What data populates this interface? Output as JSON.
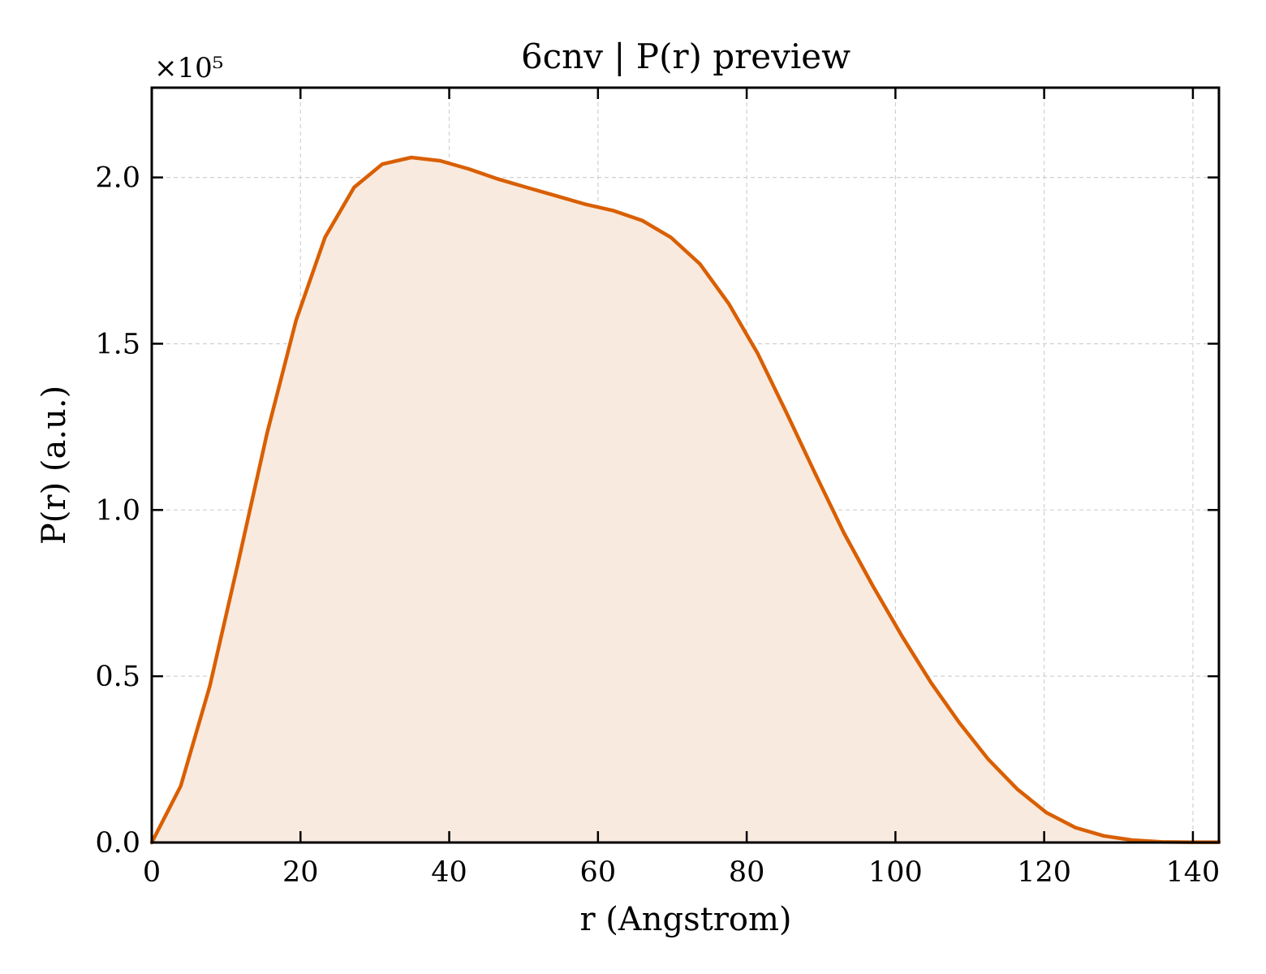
{
  "chart_data": {
    "type": "area",
    "title": "6cnv | P(r) preview",
    "xlabel": "r (Angstrom)",
    "ylabel": "P(r) (a.u.)",
    "y_scale_label": "×10⁵",
    "y_scale_factor": 100000,
    "xlim": [
      0,
      143.5
    ],
    "ylim": [
      0,
      2.27
    ],
    "xticks": [
      0,
      20,
      40,
      60,
      80,
      100,
      120,
      140
    ],
    "yticks": [
      0.0,
      0.5,
      1.0,
      1.5,
      2.0
    ],
    "ytick_labels": [
      "0.0",
      "0.5",
      "1.0",
      "1.5",
      "2.0"
    ],
    "grid": true,
    "legend": "none",
    "line_color": "#d95f02",
    "fill_color": "#f9eadf",
    "series": [
      {
        "x": [
          0,
          3.9,
          7.8,
          11.6,
          15.5,
          19.4,
          23.3,
          27.2,
          31.0,
          34.9,
          38.8,
          42.7,
          46.6,
          50.4,
          54.3,
          58.2,
          62.1,
          66.0,
          69.8,
          73.7,
          77.6,
          81.5,
          85.4,
          89.2,
          93.1,
          97.0,
          100.9,
          104.8,
          108.6,
          112.5,
          116.4,
          120.3,
          124.2,
          128.0,
          131.9,
          135.8,
          139.7,
          143.5
        ],
        "y": [
          0.0,
          0.17,
          0.47,
          0.84,
          1.23,
          1.57,
          1.82,
          1.97,
          2.04,
          2.06,
          2.05,
          2.025,
          1.995,
          1.97,
          1.945,
          1.92,
          1.9,
          1.87,
          1.82,
          1.74,
          1.62,
          1.47,
          1.29,
          1.11,
          0.93,
          0.77,
          0.62,
          0.48,
          0.36,
          0.25,
          0.16,
          0.09,
          0.045,
          0.02,
          0.007,
          0.002,
          0.001,
          0.001
        ]
      }
    ]
  }
}
